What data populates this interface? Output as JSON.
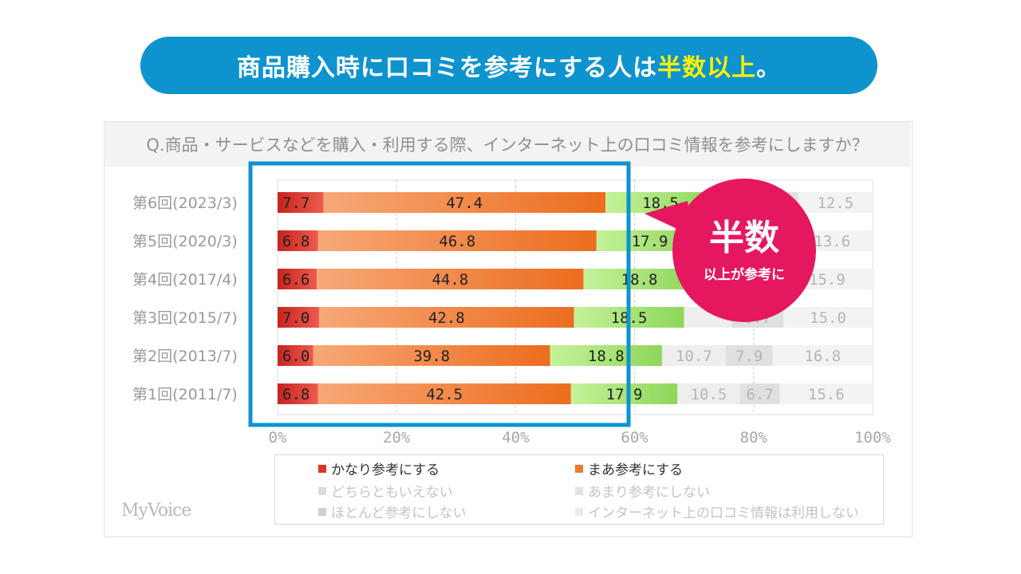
{
  "banner": {
    "text_main": "商品購入時に口コミを参考にする人は",
    "text_highlight": "半数以上",
    "text_end": "。"
  },
  "question": "Q.商品・サービスなどを購入・利用する際、インターネット上の口コミ情報を参考にしますか？",
  "callout": {
    "big": "半数",
    "small": "以上が参考に"
  },
  "brand": "MyVoice",
  "colors": {
    "banner": "#0e93cf",
    "highlight": "#fff200",
    "callout": "#e5175e",
    "frame": "#0e93cf"
  },
  "chart_data": {
    "type": "bar",
    "orientation": "horizontal",
    "stacked": true,
    "categories": [
      "第6回(2023/3)",
      "第5回(2020/3)",
      "第4回(2017/4)",
      "第3回(2015/7)",
      "第2回(2013/7)",
      "第1回(2011/7)"
    ],
    "xlim": [
      0,
      100
    ],
    "xticks": [
      "0%",
      "20%",
      "40%",
      "60%",
      "80%",
      "100%"
    ],
    "grid": true,
    "legend_position": "bottom",
    "series": [
      {
        "name": "かなり参考にする",
        "color": "#e0332c",
        "values": [
          7.7,
          6.8,
          6.6,
          7.0,
          6.0,
          6.8
        ],
        "labels": [
          "7.7",
          "6.8",
          "6.6",
          "7.0",
          "6.0",
          "6.8"
        ]
      },
      {
        "name": "まあ参考にする",
        "color": "#f07a32",
        "values": [
          47.4,
          46.8,
          44.8,
          42.8,
          39.8,
          42.5
        ],
        "labels": [
          "47.4",
          "46.8",
          "44.8",
          "42.8",
          "39.8",
          "42.5"
        ]
      },
      {
        "name": "どちらともいえない",
        "color": "#9ee06a",
        "values": [
          18.5,
          17.9,
          18.8,
          18.5,
          18.8,
          17.9
        ],
        "labels": [
          "18.5",
          "17.9",
          "18.8",
          "18.5",
          "18.8",
          "17.9"
        ]
      },
      {
        "name": "あまり参考にしない",
        "color": "#eeeeee",
        "values": [
          7.0,
          8.0,
          8.0,
          8.0,
          10.7,
          10.5
        ],
        "labels": [
          "",
          "",
          "",
          "",
          "10.7",
          "10.5"
        ]
      },
      {
        "name": "ほとんど参考にしない",
        "color": "#e0e0e0",
        "values": [
          6.9,
          6.9,
          6.2,
          8.7,
          7.9,
          6.7
        ],
        "labels": [
          "",
          "",
          "",
          "8.7",
          "7.9",
          "6.7"
        ]
      },
      {
        "name": "インターネット上の口コミ情報は利用しない",
        "color": "#f3f3f3",
        "values": [
          12.5,
          13.6,
          15.9,
          15.0,
          16.8,
          15.6
        ],
        "labels": [
          "12.5",
          "13.6",
          "15.9",
          "15.0",
          "16.8",
          "15.6"
        ]
      }
    ]
  }
}
